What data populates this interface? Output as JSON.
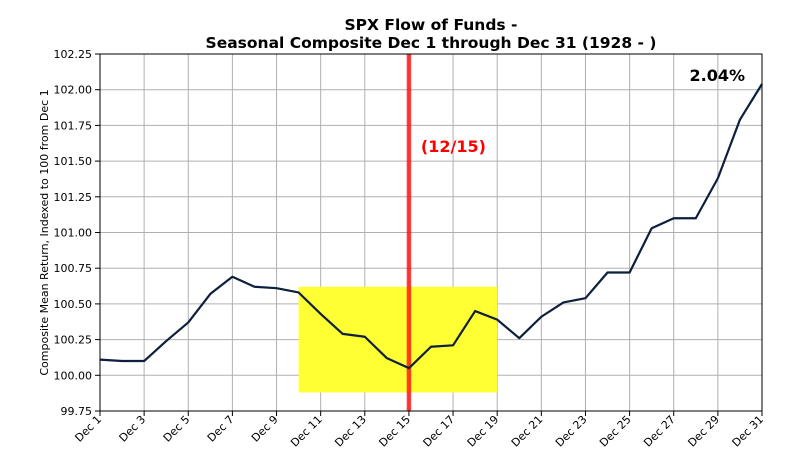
{
  "chart_data": {
    "type": "line",
    "title": "SPX Flow of Funds -",
    "subtitle": "Seasonal Composite Dec 1 through Dec 31 (1928 - )",
    "ylabel": "Composite Mean Return, Indexed to 100 from Dec 1",
    "xlabel": "",
    "ylim": [
      99.75,
      102.25
    ],
    "yticks": [
      "99.75",
      "100.00",
      "100.25",
      "100.50",
      "100.75",
      "101.00",
      "101.25",
      "101.50",
      "101.75",
      "102.00",
      "102.25"
    ],
    "xticks": [
      "Dec 1",
      "Dec 3",
      "Dec 5",
      "Dec 7",
      "Dec 9",
      "Dec 11",
      "Dec 13",
      "Dec 15",
      "Dec 17",
      "Dec 19",
      "Dec 21",
      "Dec 23",
      "Dec 25",
      "Dec 27",
      "Dec 29",
      "Dec 31"
    ],
    "x": [
      1,
      2,
      3,
      4,
      5,
      6,
      7,
      8,
      9,
      10,
      11,
      12,
      13,
      14,
      15,
      16,
      17,
      18,
      19,
      20,
      21,
      22,
      23,
      24,
      25,
      26,
      27,
      28,
      29,
      30,
      31
    ],
    "series": [
      {
        "color": "#0d1f3c",
        "values": [
          100.11,
          100.1,
          100.1,
          100.24,
          100.37,
          100.57,
          100.69,
          100.62,
          100.61,
          100.58,
          100.43,
          100.29,
          100.27,
          100.12,
          100.05,
          100.2,
          100.21,
          100.45,
          100.39,
          100.26,
          100.41,
          100.51,
          100.54,
          100.72,
          100.72,
          101.03,
          101.1,
          101.1,
          101.38,
          101.79,
          102.04
        ]
      }
    ],
    "highlight_region": {
      "x_start": 10,
      "x_end": 19,
      "y_start": 99.88,
      "y_end": 100.62,
      "color": "#ffff33"
    },
    "vertical_marker": {
      "x": 15,
      "label": "(12/15)",
      "color": "#ff0000"
    },
    "annotation": "2.04%",
    "grid": true,
    "legend": "none"
  }
}
